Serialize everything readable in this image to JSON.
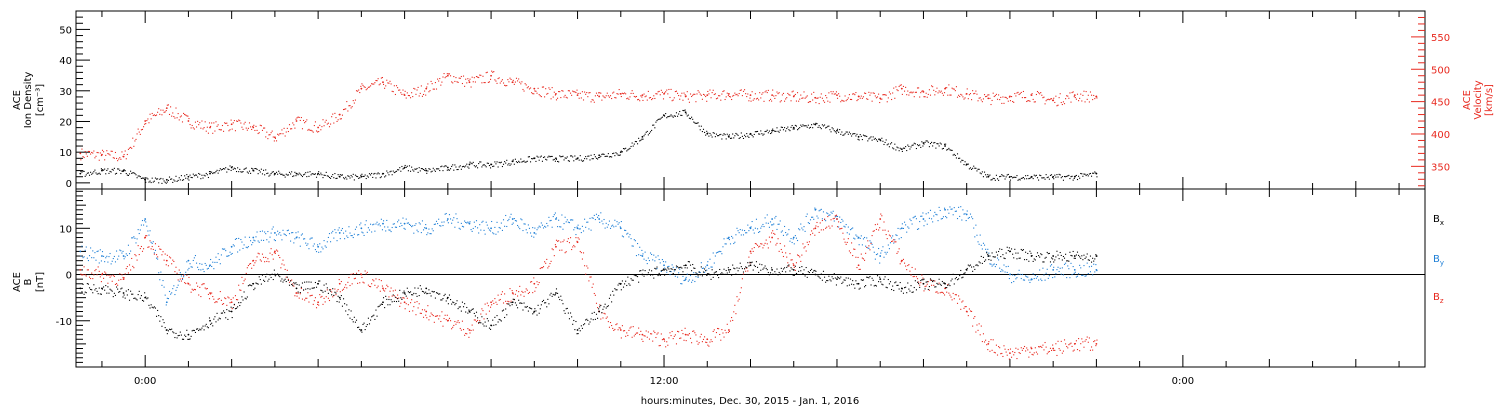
{
  "colors": {
    "black": "#000000",
    "red": "#e8281e",
    "blue": "#1e7fd6"
  },
  "labels": {
    "xlabel": "hours:minutes, Dec. 30, 2015 - Jan. 1, 2016",
    "panel1_left_line1": "ACE",
    "panel1_left_line2": "Ion Density",
    "panel1_left_line3": "[cm⁻³]",
    "panel1_right_line1": "ACE",
    "panel1_right_line2": "Velocity",
    "panel1_right_line3": "[km/s]",
    "panel2_left_line1": "ACE",
    "panel2_left_line2": "B",
    "panel2_left_line3": "[nT]"
  },
  "chart_data": [
    {
      "type": "scatter",
      "panel": "top",
      "x_unit": "hours since 00:00 Dec. 31, 2015",
      "xlim": [
        -1.6,
        29.6
      ],
      "x_ticks": [
        {
          "x": 0,
          "label": "0:00"
        },
        {
          "x": 12,
          "label": "12:00"
        },
        {
          "x": 24,
          "label": "0:00"
        }
      ],
      "ylim": [
        -2,
        56
      ],
      "y_ticks": [
        0,
        10,
        20,
        30,
        40,
        50
      ],
      "y2lim": [
        315,
        590
      ],
      "y2_ticks": [
        350,
        400,
        450,
        500,
        550
      ],
      "series": [
        {
          "axis": "left",
          "color": "black",
          "x": [
            -1.5,
            -1.0,
            -0.5,
            0.0,
            0.5,
            1.0,
            1.5,
            2.0,
            2.5,
            3.0,
            3.5,
            4.0,
            4.5,
            5.0,
            5.5,
            6.0,
            6.5,
            7.0,
            7.5,
            8.0,
            8.5,
            9.0,
            9.5,
            10.0,
            10.5,
            11.0,
            11.5,
            12.0,
            12.5,
            13.0,
            13.5,
            14.0,
            14.5,
            15.0,
            15.5,
            16.0,
            16.5,
            17.0,
            17.5,
            18.0,
            18.5,
            19.0,
            19.5,
            20.0,
            20.5,
            21.0,
            21.5,
            22.0
          ],
          "values": [
            3,
            4,
            4,
            1,
            1,
            2,
            3,
            5,
            4,
            3,
            3,
            3,
            2,
            2,
            3,
            5,
            4,
            5,
            6,
            6,
            7,
            8,
            8,
            8,
            9,
            10,
            15,
            22,
            23,
            16,
            15,
            16,
            17,
            18,
            19,
            17,
            15,
            14,
            11,
            13,
            12,
            6,
            2,
            2,
            2,
            2,
            2,
            3
          ]
        },
        {
          "axis": "right",
          "color": "red",
          "x": [
            -1.5,
            -1.0,
            -0.5,
            0.0,
            0.5,
            1.0,
            1.5,
            2.0,
            2.5,
            3.0,
            3.5,
            4.0,
            4.5,
            5.0,
            5.5,
            6.0,
            6.5,
            7.0,
            7.5,
            8.0,
            8.5,
            9.0,
            9.5,
            10.0,
            10.5,
            11.0,
            11.5,
            12.0,
            12.5,
            13.0,
            13.5,
            14.0,
            14.5,
            15.0,
            15.5,
            16.0,
            16.5,
            17.0,
            17.5,
            18.0,
            18.5,
            19.0,
            19.5,
            20.0,
            20.5,
            21.0,
            21.5,
            22.0
          ],
          "values": [
            370,
            368,
            365,
            420,
            440,
            420,
            410,
            415,
            410,
            395,
            420,
            410,
            430,
            470,
            480,
            460,
            470,
            490,
            480,
            490,
            480,
            470,
            462,
            460,
            458,
            462,
            460,
            462,
            458,
            460,
            462,
            460,
            460,
            458,
            456,
            460,
            458,
            455,
            470,
            465,
            470,
            462,
            455,
            458,
            460,
            452,
            460,
            458
          ]
        }
      ]
    },
    {
      "type": "scatter",
      "panel": "bottom",
      "x_unit": "hours since 00:00 Dec. 31, 2015",
      "xlim": [
        -1.6,
        29.6
      ],
      "ylim": [
        -20,
        18.5
      ],
      "y_ticks": [
        -10,
        0,
        10
      ],
      "legend": "right",
      "series": [
        {
          "name": "Bx",
          "color": "black",
          "x": [
            -1.5,
            -1.0,
            -0.5,
            0.0,
            0.5,
            1.0,
            1.5,
            2.0,
            2.5,
            3.0,
            3.5,
            4.0,
            4.5,
            5.0,
            5.5,
            6.0,
            6.5,
            7.0,
            7.5,
            8.0,
            8.5,
            9.0,
            9.5,
            10.0,
            10.5,
            11.0,
            11.5,
            12.0,
            12.5,
            13.0,
            13.5,
            14.0,
            14.5,
            15.0,
            15.5,
            16.0,
            16.5,
            17.0,
            17.5,
            18.0,
            18.5,
            19.0,
            19.5,
            20.0,
            20.5,
            21.0,
            21.5,
            22.0
          ],
          "values": [
            -3,
            -3,
            -4,
            -5,
            -12,
            -13,
            -10,
            -8,
            -2,
            0,
            -3,
            -2,
            -5,
            -12,
            -6,
            -4,
            -3,
            -5,
            -8,
            -11,
            -6,
            -8,
            -4,
            -12,
            -8,
            -2,
            0,
            1,
            2,
            0,
            1,
            2,
            1,
            1,
            0,
            -1,
            -2,
            -1,
            -3,
            -2,
            -2,
            1,
            4,
            5,
            4,
            4,
            4,
            4
          ]
        },
        {
          "name": "By",
          "color": "blue",
          "x": [
            -1.5,
            -1.0,
            -0.5,
            0.0,
            0.5,
            1.0,
            1.5,
            2.0,
            2.5,
            3.0,
            3.5,
            4.0,
            4.5,
            5.0,
            5.5,
            6.0,
            6.5,
            7.0,
            7.5,
            8.0,
            8.5,
            9.0,
            9.5,
            10.0,
            10.5,
            11.0,
            11.5,
            12.0,
            12.5,
            13.0,
            13.5,
            14.0,
            14.5,
            15.0,
            15.5,
            16.0,
            16.5,
            17.0,
            17.5,
            18.0,
            18.5,
            19.0,
            19.5,
            20.0,
            20.5,
            21.0,
            21.5,
            22.0
          ],
          "values": [
            5,
            4,
            4,
            12,
            -6,
            3,
            2,
            6,
            8,
            9,
            8,
            6,
            9,
            10,
            11,
            11,
            10,
            12,
            11,
            10,
            12,
            9,
            12,
            10,
            12,
            10,
            4,
            2,
            -1,
            2,
            8,
            10,
            12,
            8,
            14,
            12,
            8,
            4,
            10,
            12,
            14,
            13,
            4,
            0,
            -1,
            1,
            1,
            1
          ]
        },
        {
          "name": "Bz",
          "color": "red",
          "x": [
            -1.5,
            -1.0,
            -0.5,
            0.0,
            0.5,
            1.0,
            1.5,
            2.0,
            2.5,
            3.0,
            3.5,
            4.0,
            4.5,
            5.0,
            5.5,
            6.0,
            6.5,
            7.0,
            7.5,
            8.0,
            8.5,
            9.0,
            9.5,
            10.0,
            10.5,
            11.0,
            11.5,
            12.0,
            12.5,
            13.0,
            13.5,
            14.0,
            14.5,
            15.0,
            15.5,
            16.0,
            16.5,
            17.0,
            17.5,
            18.0,
            18.5,
            19.0,
            19.5,
            20.0,
            20.5,
            21.0,
            21.5,
            22.0
          ],
          "values": [
            1,
            0,
            -1,
            8,
            3,
            -2,
            -4,
            -6,
            3,
            5,
            -4,
            -6,
            -2,
            0,
            -3,
            -6,
            -8,
            -10,
            -12,
            -6,
            -4,
            -2,
            6,
            7,
            -8,
            -12,
            -13,
            -14,
            -13,
            -14,
            -12,
            5,
            8,
            2,
            10,
            12,
            2,
            12,
            3,
            -2,
            -3,
            -8,
            -15,
            -17,
            -16,
            -16,
            -15,
            -15
          ]
        }
      ]
    }
  ]
}
